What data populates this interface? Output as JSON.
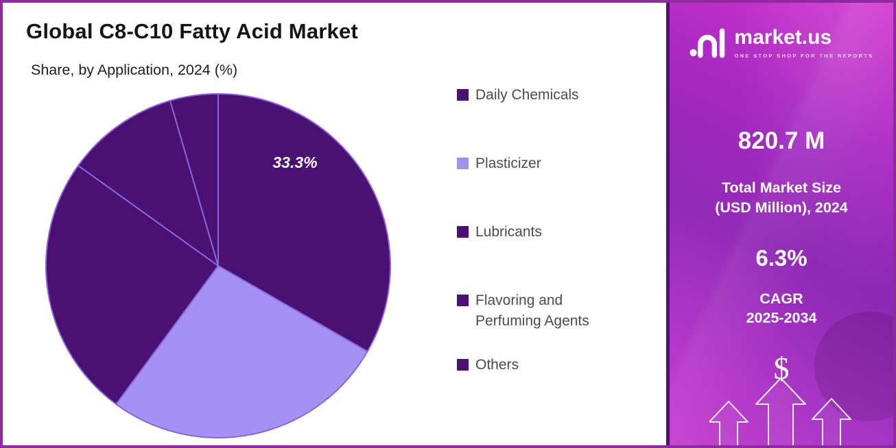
{
  "chart_data": {
    "type": "pie",
    "title": "Global C8-C10 Fatty Acid Market",
    "subtitle": "Share, by Application, 2024 (%)",
    "categories": [
      "Daily Chemicals",
      "Plasticizer",
      "Lubricants",
      "Flavoring and Perfuming Agents",
      "Others"
    ],
    "values": [
      33.3,
      26.8,
      24.8,
      10.6,
      4.5
    ],
    "unit": "%",
    "colors": [
      "#481173",
      "#a392f3",
      "#481173",
      "#481173",
      "#481173"
    ],
    "slice_stroke": "#8c64d8",
    "start_angle_deg": 0,
    "direction": "clockwise",
    "data_label": {
      "category": "Daily Chemicals",
      "text": "33.3%"
    },
    "legend_position": "right",
    "legend": [
      {
        "label": "Daily Chemicals",
        "color": "#481173"
      },
      {
        "label": "Plasticizer",
        "color": "#a392f3"
      },
      {
        "label": "Lubricants",
        "color": "#481173"
      },
      {
        "label": "Flavoring and Perfuming Agents",
        "color": "#481173"
      },
      {
        "label": "Others",
        "color": "#481173"
      }
    ]
  },
  "sidebar": {
    "brand": {
      "name": "market.us",
      "tagline": "ONE STOP SHOP FOR THE REPORTS"
    },
    "market_size": {
      "value": "820.7 M",
      "label_line1": "Total Market Size",
      "label_line2": "(USD Million), 2024"
    },
    "cagr": {
      "value": "6.3%",
      "label_line1": "CAGR",
      "label_line2": "2025-2034"
    },
    "dollar_sign": "$"
  }
}
